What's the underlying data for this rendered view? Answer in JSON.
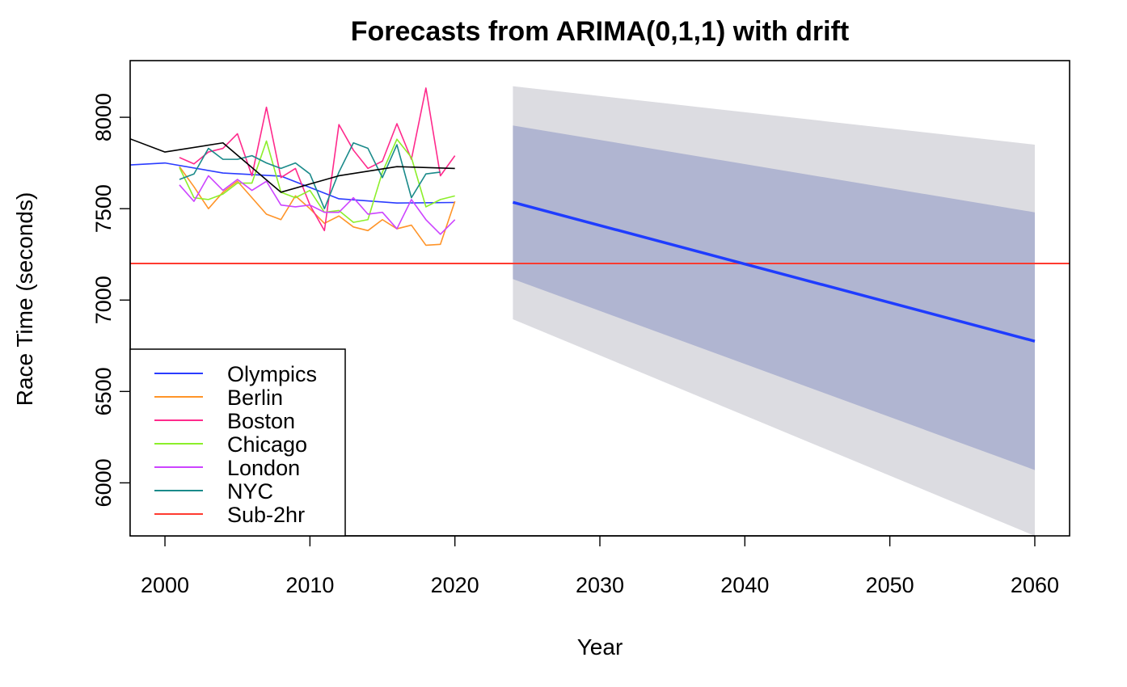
{
  "chart_data": {
    "type": "line",
    "title": "Forecasts from ARIMA(0,1,1) with drift",
    "xlabel": "Year",
    "ylabel": "Race Time (seconds)",
    "xlim": [
      1997.6,
      2062.4
    ],
    "ylim": [
      5710,
      8310
    ],
    "x_ticks": [
      "2000",
      "2010",
      "2020",
      "2030",
      "2040",
      "2050",
      "2060"
    ],
    "y_ticks": [
      "6000",
      "6500",
      "7000",
      "7500",
      "8000"
    ],
    "legend_position": "bottom-left",
    "legend": [
      {
        "label": "Olympics",
        "color": "#2a3cff"
      },
      {
        "label": "Berlin",
        "color": "#ff9428"
      },
      {
        "label": "Boston",
        "color": "#ff2a8c"
      },
      {
        "label": "Chicago",
        "color": "#8cef2a"
      },
      {
        "label": "London",
        "color": "#cc44ff"
      },
      {
        "label": "NYC",
        "color": "#1a8a8a"
      },
      {
        "label": "Sub-2hr",
        "color": "#ff3b30"
      }
    ],
    "series": [
      {
        "name": "Olympics",
        "color": "#2a3cff",
        "x": [
          1996,
          2000,
          2004,
          2008,
          2012,
          2016,
          2020
        ],
        "y": [
          7732,
          7750,
          7695,
          7678,
          7554,
          7531,
          7534
        ]
      },
      {
        "name": "Berlin",
        "color": "#ff9428",
        "x": [
          2001,
          2002,
          2003,
          2004,
          2005,
          2006,
          2007,
          2008,
          2009,
          2010,
          2011,
          2012,
          2013,
          2014,
          2015,
          2016,
          2017,
          2018,
          2019,
          2020
        ],
        "y": [
          7730,
          7620,
          7500,
          7590,
          7650,
          7560,
          7470,
          7440,
          7570,
          7500,
          7420,
          7460,
          7400,
          7380,
          7440,
          7390,
          7410,
          7300,
          7305,
          7540
        ]
      },
      {
        "name": "Boston",
        "color": "#ff2a8c",
        "x": [
          2001,
          2002,
          2003,
          2004,
          2005,
          2006,
          2007,
          2008,
          2009,
          2010,
          2011,
          2012,
          2013,
          2014,
          2015,
          2016,
          2017,
          2018,
          2019,
          2020
        ],
        "y": [
          7780,
          7745,
          7810,
          7830,
          7910,
          7680,
          8055,
          7670,
          7720,
          7520,
          7380,
          7960,
          7820,
          7720,
          7760,
          7965,
          7770,
          8160,
          7680,
          7790
        ]
      },
      {
        "name": "Chicago",
        "color": "#8cef2a",
        "x": [
          2001,
          2002,
          2003,
          2004,
          2005,
          2006,
          2007,
          2008,
          2009,
          2010,
          2011,
          2012,
          2013,
          2014,
          2015,
          2016,
          2017,
          2018,
          2019,
          2020
        ],
        "y": [
          7725,
          7560,
          7550,
          7580,
          7640,
          7640,
          7870,
          7590,
          7560,
          7600,
          7480,
          7490,
          7425,
          7440,
          7700,
          7880,
          7780,
          7510,
          7550,
          7570
        ]
      },
      {
        "name": "London",
        "color": "#cc44ff",
        "x": [
          2001,
          2002,
          2003,
          2004,
          2005,
          2006,
          2007,
          2008,
          2009,
          2010,
          2011,
          2012,
          2013,
          2014,
          2015,
          2016,
          2017,
          2018,
          2019,
          2020
        ],
        "y": [
          7630,
          7540,
          7680,
          7600,
          7660,
          7600,
          7650,
          7520,
          7510,
          7520,
          7480,
          7480,
          7560,
          7470,
          7480,
          7390,
          7550,
          7440,
          7360,
          7440
        ]
      },
      {
        "name": "NYC",
        "color": "#1a8a8a",
        "x": [
          2001,
          2002,
          2003,
          2004,
          2005,
          2006,
          2007,
          2008,
          2009,
          2010,
          2011,
          2012,
          2013,
          2014,
          2015,
          2016,
          2017,
          2018,
          2019
        ],
        "y": [
          7660,
          7690,
          7830,
          7770,
          7770,
          7790,
          7750,
          7720,
          7750,
          7690,
          7500,
          7700,
          7860,
          7830,
          7670,
          7850,
          7560,
          7690,
          7700
        ]
      },
      {
        "name": "",
        "color": "#000000",
        "x": [
          1996,
          2000,
          2004,
          2008,
          2012,
          2016,
          2020
        ],
        "y": [
          7930,
          7810,
          7860,
          7590,
          7680,
          7730,
          7720
        ]
      }
    ],
    "reference_line": {
      "name": "Sub-2hr",
      "color": "#ff3b30",
      "y": 7200
    },
    "forecast": {
      "color": "#1f3cff",
      "x": [
        2024,
        2060
      ],
      "mean": [
        7535,
        6775
      ],
      "interval_80": {
        "color": "#b0b5d1",
        "lower": [
          7115,
          6070
        ],
        "upper": [
          7955,
          7480
        ]
      },
      "interval_95": {
        "color": "#dcdce1",
        "lower": [
          6895,
          5710
        ],
        "upper": [
          8170,
          7850
        ]
      }
    }
  }
}
